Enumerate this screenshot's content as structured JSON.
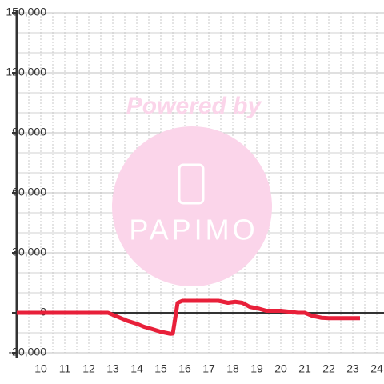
{
  "chart_data": {
    "type": "line",
    "watermark": [
      "Powered by",
      "PAPIMO"
    ],
    "x": [
      9,
      12.8,
      13,
      13.3,
      13.6,
      14,
      14.3,
      14.6,
      15,
      15.4,
      15.5,
      15.7,
      15.9,
      16.3,
      17.4,
      17.8,
      18.1,
      18.4,
      18.7,
      19.1,
      19.4,
      20,
      20.4,
      20.7,
      21,
      21.3,
      21.7,
      22,
      23.3
    ],
    "series": [
      {
        "color": "#e8203a",
        "values": [
          0,
          0,
          -1000,
          -2500,
          -4000,
          -5500,
          -7000,
          -8000,
          -9500,
          -10500,
          -10400,
          5000,
          6000,
          6000,
          6000,
          5000,
          5500,
          5000,
          3000,
          2000,
          1000,
          1000,
          500,
          0,
          0,
          -1500,
          -2500,
          -2700,
          -2700
        ]
      }
    ],
    "xlim": [
      9,
      24.3
    ],
    "ylim": [
      -20000,
      150000
    ],
    "xticks": [
      10,
      11,
      12,
      13,
      14,
      15,
      16,
      17,
      18,
      19,
      20,
      21,
      22,
      23,
      24
    ],
    "xminorticks": [
      9.5,
      10.5,
      11.5,
      12.5,
      13.5,
      14.5,
      15.5,
      16.5,
      17.5,
      18.5,
      19.5,
      20.5,
      21.5,
      22.5,
      23.5
    ],
    "yticks": [
      {
        "value": -20000,
        "label": "-20,000"
      },
      0,
      {
        "value": 30000,
        "label": "30,000"
      },
      {
        "value": 60000,
        "label": "60,000"
      },
      {
        "value": 90000,
        "label": "90,000"
      },
      {
        "value": 120000,
        "label": "120,000"
      },
      {
        "value": 150000,
        "label": "150,000"
      }
    ],
    "yminorticks": [
      -10000,
      10000,
      20000,
      40000,
      50000,
      70000,
      80000,
      100000,
      110000,
      130000,
      140000
    ],
    "grid": true
  }
}
